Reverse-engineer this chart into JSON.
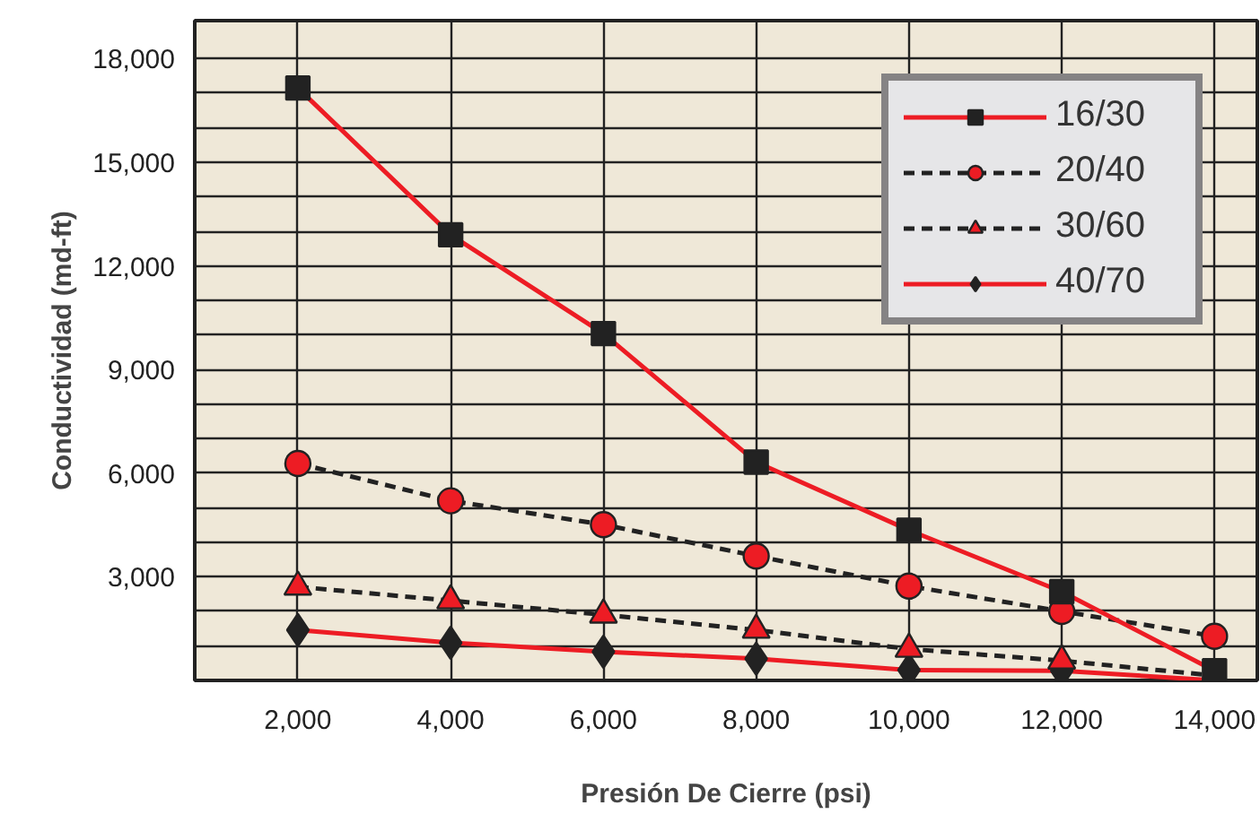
{
  "chart_data": {
    "type": "line",
    "xlabel": "Presión De Cierre (psi)",
    "ylabel": "Conductividad (md-ft)",
    "x": [
      2000,
      4000,
      6000,
      8000,
      10000,
      12000,
      14000
    ],
    "series": [
      {
        "name": "16/30",
        "color": "#ed1c24",
        "marker": "square",
        "line_style": "solid",
        "values": [
          17150,
          12900,
          10040,
          6320,
          4350,
          2570,
          280
        ]
      },
      {
        "name": "20/40",
        "color": "#ed1c24",
        "marker": "circle",
        "line_style": "dashed",
        "values": [
          6280,
          5200,
          4510,
          3600,
          2730,
          2000,
          1280
        ]
      },
      {
        "name": "30/60",
        "color": "#ed1c24",
        "marker": "triangle",
        "line_style": "dashed",
        "values": [
          2710,
          2310,
          1900,
          1460,
          910,
          570,
          140
        ]
      },
      {
        "name": "40/70",
        "color": "#ed1c24",
        "marker": "diamond",
        "line_style": "solid",
        "values": [
          1460,
          1090,
          830,
          630,
          300,
          280,
          0
        ]
      }
    ],
    "xlim": [
      650,
      14560
    ],
    "ylim": [
      0,
      19100
    ],
    "xticks": [
      {
        "value": 2000,
        "label": "2,000"
      },
      {
        "value": 4000,
        "label": "4,000"
      },
      {
        "value": 6000,
        "label": "6,000"
      },
      {
        "value": 8000,
        "label": "8,000"
      },
      {
        "value": 10000,
        "label": "10,000"
      },
      {
        "value": 12000,
        "label": "12,000"
      },
      {
        "value": 14000,
        "label": "14,000"
      }
    ],
    "yticks": [
      {
        "value": 1000,
        "label": null
      },
      {
        "value": 2000,
        "label": null
      },
      {
        "value": 3000,
        "label": "3,000"
      },
      {
        "value": 4000,
        "label": null
      },
      {
        "value": 5000,
        "label": null
      },
      {
        "value": 6000,
        "label": "6,000"
      },
      {
        "value": 7000,
        "label": null
      },
      {
        "value": 8000,
        "label": null
      },
      {
        "value": 9000,
        "label": "9,000"
      },
      {
        "value": 10000,
        "label": null
      },
      {
        "value": 11000,
        "label": null
      },
      {
        "value": 12000,
        "label": "12,000"
      },
      {
        "value": 13000,
        "label": null
      },
      {
        "value": 14000,
        "label": null
      },
      {
        "value": 15000,
        "label": "15,000"
      },
      {
        "value": 16000,
        "label": null
      },
      {
        "value": 17000,
        "label": null
      },
      {
        "value": 18000,
        "label": "18,000"
      }
    ],
    "grid": true,
    "legend": "top right"
  }
}
